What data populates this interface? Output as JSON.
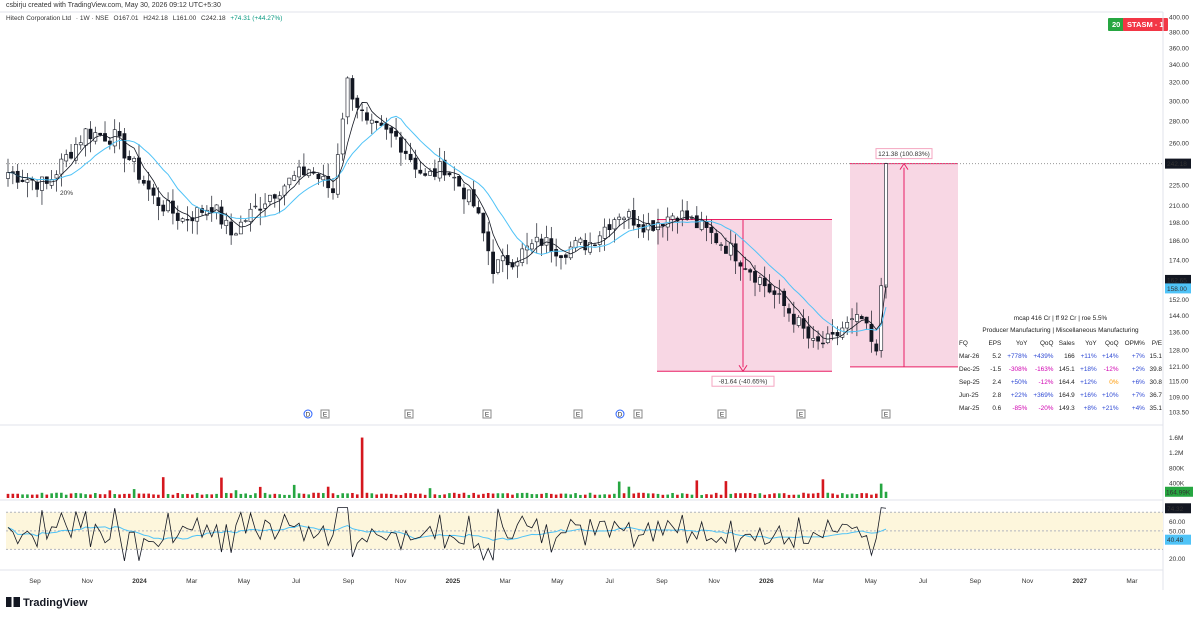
{
  "header": {
    "created_by": "csbirju created with TradingView.com, May 30, 2026 09:12 UTC+5:30",
    "symbol_parts": [
      "Hitech Corporation Ltd",
      "· 1W · NSE",
      "O167.01",
      "H242.18",
      "L161.00",
      "C242.18",
      "+74.31 (+44.27%)"
    ],
    "badge_left": "20",
    "badge_right": "STASM - 1",
    "badge_left_color": "#26a641",
    "badge_right_color": "#f23645"
  },
  "brand": "TradingView",
  "chart_data": {
    "type": "candlestick",
    "price_axis": {
      "labels": [
        "400.00",
        "380.00",
        "360.00",
        "340.00",
        "320.00",
        "300.00",
        "280.00",
        "260.00",
        "242.18",
        "225.00",
        "210.00",
        "198.00",
        "186.00",
        "174.00",
        "162.65",
        "152.00",
        "144.00",
        "136.00",
        "128.00",
        "121.00",
        "115.00",
        "109.00",
        "103.50"
      ],
      "last_price": "242.18",
      "ma_price": "162.65",
      "ma2_price": "158.00",
      "scale": "log"
    },
    "x_ticks": [
      "Sep",
      "Nov",
      "2024",
      "Mar",
      "May",
      "Jul",
      "Sep",
      "Nov",
      "2025",
      "Mar",
      "May",
      "Jul",
      "Sep",
      "Nov",
      "2026",
      "Mar",
      "May",
      "Jul",
      "Sep",
      "Nov",
      "2027",
      "Mar"
    ],
    "annotations": {
      "drawdown_label": "-81.64 (-40.65%)",
      "rally_label": "121.38 (100.83%)",
      "pct_label": "20%"
    },
    "event_markers": [
      "D",
      "E",
      "E",
      "E",
      "E",
      "D",
      "E",
      "E",
      "E",
      "E"
    ],
    "volume_axis": [
      "1.6M",
      "1.2M",
      "800K",
      "400K"
    ],
    "volume_last": "164.99K",
    "rsi_axis": [
      "60.00",
      "20.00"
    ],
    "rsi_last": "74.32",
    "rsi_ma_last": "40.48",
    "rsi_mid": "50.00",
    "colors": {
      "up": "#089981",
      "down": "#131722",
      "ma_black": "#131722",
      "ma_blue": "#4fc3f7",
      "box": "#f8d7e4",
      "box_edge": "#e91e63",
      "vol_up": "#26a641",
      "vol_down": "#d5171e",
      "rsi_band": "#fdf6dc"
    }
  },
  "fundamentals": {
    "header": "mcap 416 Cr  |  ff 92 Cr  |  roe 5.5%",
    "sector": "Producer Manufacturing  |  Miscellaneous Manufacturing",
    "columns": [
      "FQ",
      "EPS",
      "YoY",
      "QoQ",
      "Sales",
      "YoY",
      "QoQ",
      "OPM%",
      "P/E"
    ],
    "rows": [
      [
        "Mar-26",
        "5.2",
        "+778%",
        "+439%",
        "166",
        "+11%",
        "+14%",
        "+7%",
        "15.1"
      ],
      [
        "Dec-25",
        "-1.5",
        "-308%",
        "-163%",
        "145.1",
        "+18%",
        "-12%",
        "+2%",
        "39.8"
      ],
      [
        "Sep-25",
        "2.4",
        "+50%",
        "-12%",
        "164.4",
        "+12%",
        "0%",
        "+6%",
        "30.8"
      ],
      [
        "Jun-25",
        "2.8",
        "+22%",
        "+369%",
        "164.9",
        "+16%",
        "+10%",
        "+7%",
        "36.7"
      ],
      [
        "Mar-25",
        "0.6",
        "-85%",
        "-20%",
        "149.3",
        "+8%",
        "+21%",
        "+4%",
        "35.1"
      ]
    ]
  }
}
